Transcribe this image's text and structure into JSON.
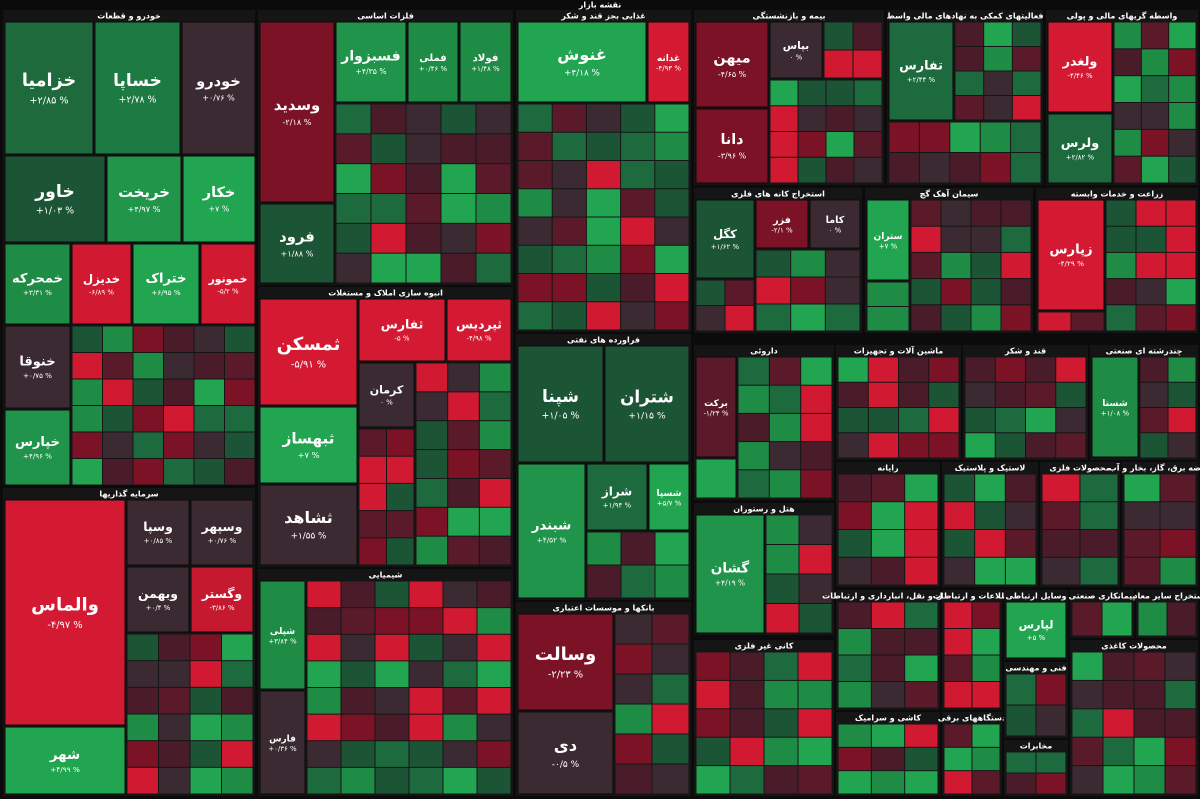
{
  "header": {
    "title": "نقشه بازار"
  },
  "sectors": [
    {
      "title": "خودرو و قطعات",
      "tiles": [
        {
          "label": "خزامیا",
          "change": "+۲/۸۵ %",
          "color": "#1e6a3d"
        },
        {
          "label": "خساپا",
          "change": "+۲/۷۸ %",
          "color": "#1d7a42"
        },
        {
          "label": "خودرو",
          "change": "+۰/۷۶ %",
          "color": "#3b2a31"
        },
        {
          "label": "خاور",
          "change": "+۱/۰۳ %",
          "color": "#1c5436"
        },
        {
          "label": "خریخت",
          "change": "+۴/۹۷ %",
          "color": "#21964a"
        },
        {
          "label": "خکار",
          "change": "+۷ %",
          "color": "#22a551"
        },
        {
          "label": "خمحرکه",
          "change": "+۳/۳۱ %",
          "color": "#1f8c46"
        },
        {
          "label": "خدیزل",
          "change": "-۶/۸۹ %",
          "color": "#d11a31"
        },
        {
          "label": "ختراک",
          "change": "+۶/۹۵ %",
          "color": "#22a551"
        },
        {
          "label": "خمونور",
          "change": "-۵/۲ %",
          "color": "#d11a31"
        },
        {
          "label": "خنوقا",
          "change": "+۰/۷۵ %",
          "color": "#3b2a31"
        },
        {
          "label": "خپارس",
          "change": "+۴/۹۶ %",
          "color": "#20944a"
        }
      ]
    },
    {
      "title": "سرمایه گذاریها",
      "tiles": [
        {
          "label": "والماس",
          "change": "-۴/۹۷ %",
          "color": "#d31a32"
        },
        {
          "label": "شهر",
          "change": "+۴/۹۹ %",
          "color": "#22a551"
        },
        {
          "label": "وسپا",
          "change": "+۰/۸۵ %",
          "color": "#3b2a31"
        },
        {
          "label": "وسپهر",
          "change": "+۰/۷۶ %",
          "color": "#3b2a31"
        },
        {
          "label": "وبهمن",
          "change": "+۰/۴ %",
          "color": "#3b2a31"
        },
        {
          "label": "وگستر",
          "change": "-۳/۸۶ %",
          "color": "#c4192f"
        }
      ]
    },
    {
      "title": "فلزات اساسی",
      "tiles": [
        {
          "label": "وسدید",
          "change": "-۲/۱۸ %",
          "color": "#7b1226"
        },
        {
          "label": "فرود",
          "change": "+۱/۸۸ %",
          "color": "#1c5436"
        },
        {
          "label": "فسبزوار",
          "change": "+۴/۳۵ %",
          "color": "#20944a"
        },
        {
          "label": "فملی",
          "change": "+۰/۴۶ %",
          "color": "#1f8c46"
        },
        {
          "label": "فولاد",
          "change": "+۱/۴۸ %",
          "color": "#1f8c46"
        }
      ]
    },
    {
      "title": "انبوه سازی املاک و مستغلات",
      "tiles": [
        {
          "label": "ثمسکن",
          "change": "-۵/۹۱ %",
          "color": "#d31a32"
        },
        {
          "label": "ثفارس",
          "change": "-۵ %",
          "color": "#d31a32"
        },
        {
          "label": "ثپردیس",
          "change": "-۴/۹۸ %",
          "color": "#d31a32"
        },
        {
          "label": "ثبهساز",
          "change": "+۷ %",
          "color": "#22a551"
        },
        {
          "label": "ثشاهد",
          "change": "+۱/۵۵ %",
          "color": "#3b2a31"
        },
        {
          "label": "کرمان",
          "change": "۰ %",
          "color": "#3b2a31"
        }
      ]
    },
    {
      "title": "شیمیایی",
      "tiles": [
        {
          "label": "شپلی",
          "change": "+۳/۸۴ %",
          "color": "#1f8c46"
        },
        {
          "label": "فارس",
          "change": "+۰/۳۶ %",
          "color": "#3b2a31"
        }
      ]
    },
    {
      "title": "غذایی بجز قند و شکر",
      "tiles": [
        {
          "label": "غنوش",
          "change": "+۴/۱۸ %",
          "color": "#22a551"
        },
        {
          "label": "غدانه",
          "change": "-۴/۹۳ %",
          "color": "#d31a32"
        }
      ]
    },
    {
      "title": "فراورده های نفتی",
      "tiles": [
        {
          "label": "شپنا",
          "change": "+۱/۰۵ %",
          "color": "#1c5436"
        },
        {
          "label": "شتران",
          "change": "+۱/۱۵ %",
          "color": "#1c5436"
        },
        {
          "label": "شبندر",
          "change": "+۴/۵۲ %",
          "color": "#20944a"
        },
        {
          "label": "شراز",
          "change": "+۱/۹۴ %",
          "color": "#1d6a3e"
        },
        {
          "label": "شسپا",
          "change": "+۵/۷ %",
          "color": "#22a551"
        }
      ]
    },
    {
      "title": "بانکها و موسسات اعتباری",
      "tiles": [
        {
          "label": "وسالت",
          "change": "-۲/۲۳ %",
          "color": "#7b1226"
        },
        {
          "label": "دی",
          "change": "-۰/۵ %",
          "color": "#3b2a31"
        }
      ]
    },
    {
      "title": "بیمه و بازنشستگی",
      "tiles": [
        {
          "label": "میهن",
          "change": "-۴/۶۵ %",
          "color": "#7b1226"
        },
        {
          "label": "دانا",
          "change": "-۳/۹۶ %",
          "color": "#7b1226"
        },
        {
          "label": "بپاس",
          "change": "۰ %",
          "color": "#3b2a31"
        }
      ]
    },
    {
      "title": "فعالیتهای کمکی به نهادهای مالی واسط",
      "tiles": [
        {
          "label": "تفارس",
          "change": "+۲/۴۴ %",
          "color": "#1d6a3e"
        }
      ]
    },
    {
      "title": "واسطه گریهای مالی و پولی",
      "tiles": [
        {
          "label": "ولغدر",
          "change": "-۴/۴۶ %",
          "color": "#d31a32"
        },
        {
          "label": "ولرس",
          "change": "+۲/۸۲ %",
          "color": "#1d6a3e"
        }
      ]
    },
    {
      "title": "استخراج کانه های فلزی",
      "tiles": [
        {
          "label": "کگل",
          "change": "+۱/۶۲ %",
          "color": "#1c5436"
        },
        {
          "label": "فزر",
          "change": "-۲/۱ %",
          "color": "#7b1226"
        },
        {
          "label": "کاما",
          "change": "۰ %",
          "color": "#3b2a31"
        }
      ]
    },
    {
      "title": "سیمان آهک گچ",
      "tiles": [
        {
          "label": "ستران",
          "change": "+۷ %",
          "color": "#22a551"
        }
      ]
    },
    {
      "title": "زراعت و خدمات وابسته",
      "tiles": [
        {
          "label": "زپارس",
          "change": "-۴/۲۹ %",
          "color": "#d31a32"
        }
      ]
    },
    {
      "title": "داروئی",
      "tiles": [
        {
          "label": "برکت",
          "change": "-۱/۲۴ %",
          "color": "#5a1a2a"
        }
      ]
    },
    {
      "title": "ماشین آلات و تجهیزات",
      "tiles": []
    },
    {
      "title": "قند و شکر",
      "tiles": []
    },
    {
      "title": "چندرشته ای صنعتی",
      "tiles": [
        {
          "label": "شستا",
          "change": "+۱/۰۸ %",
          "color": "#1f8c46"
        }
      ]
    },
    {
      "title": "رایانه",
      "tiles": []
    },
    {
      "title": "لاستیک و پلاستیک",
      "tiles": []
    },
    {
      "title": "محصولات فلزی",
      "tiles": []
    },
    {
      "title": "عرضه برق، گاز، بخار و آب",
      "tiles": []
    },
    {
      "title": "هتل و رستوران",
      "tiles": [
        {
          "label": "گشان",
          "change": "+۴/۱۹ %",
          "color": "#20944a"
        }
      ]
    },
    {
      "title": "حمل و نقل، انبارداری و ارتباطات",
      "tiles": []
    },
    {
      "title": "اطلاعات و ارتباطات",
      "tiles": []
    },
    {
      "title": "وسایل ارتباطی",
      "tiles": [
        {
          "label": "لپارس",
          "change": "+۵ %",
          "color": "#22a551"
        }
      ]
    },
    {
      "title": "کانی غیر فلزی",
      "tiles": []
    },
    {
      "title": "کاشی و سرامیک",
      "tiles": []
    },
    {
      "title": "مخابرات",
      "tiles": []
    },
    {
      "title": "محصولات کاغذی",
      "tiles": []
    },
    {
      "title": "استخراج سایر معادن",
      "tiles": []
    },
    {
      "title": "پیمانکاری صنعتی",
      "tiles": []
    },
    {
      "title": "دستگاههای برقی",
      "tiles": []
    },
    {
      "title": "فنی و مهندسی",
      "tiles": []
    }
  ]
}
